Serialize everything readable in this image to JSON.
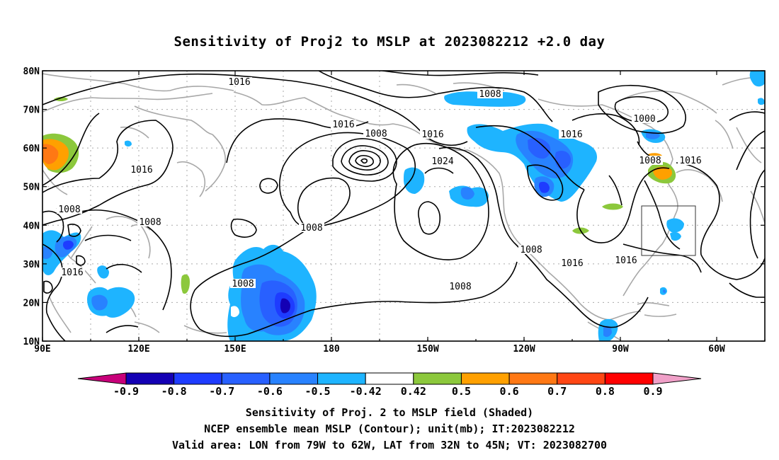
{
  "title": "Sensitivity of Proj2 to MSLP at 2023082212 +2.0 day",
  "map": {
    "lon_labels": [
      "90E",
      "120E",
      "150E",
      "180",
      "150W",
      "120W",
      "90W",
      "60W"
    ],
    "lat_labels": [
      "80N",
      "70N",
      "60N",
      "50N",
      "40N",
      "30N",
      "20N",
      "10N"
    ],
    "contour_labels": [
      "1016",
      "1008",
      "1016",
      "1008",
      "1016",
      "1000",
      "1016",
      "1024",
      "1016",
      "1008",
      "1016",
      "1008",
      "1008",
      "1008",
      "1016",
      "1008",
      "1016",
      "1016",
      "1008",
      "1008"
    ],
    "valid_box": {
      "lon_range": "79W to 62W",
      "lat_range": "32N to 45N"
    }
  },
  "colorbar": {
    "labels": [
      "-0.9",
      "-0.8",
      "-0.7",
      "-0.6",
      "-0.5",
      "-0.42",
      "0.42",
      "0.5",
      "0.6",
      "0.7",
      "0.8",
      "0.9"
    ],
    "colors": [
      "#c8007a",
      "#1400b4",
      "#1e3cff",
      "#2860ff",
      "#2882ff",
      "#1eb4ff",
      "#ffffff",
      "#8cc83c",
      "#ffa000",
      "#ff7814",
      "#ff4614",
      "#ff0000",
      "#f0a0c8"
    ]
  },
  "captions": {
    "line1": "Sensitivity of Proj. 2 to MSLP field (Shaded)",
    "line2": "NCEP ensemble mean MSLP (Contour); unit(mb); IT:2023082212",
    "line3": "Valid area: LON from 79W to 62W, LAT from 32N to 45N; VT: 2023082700"
  }
}
